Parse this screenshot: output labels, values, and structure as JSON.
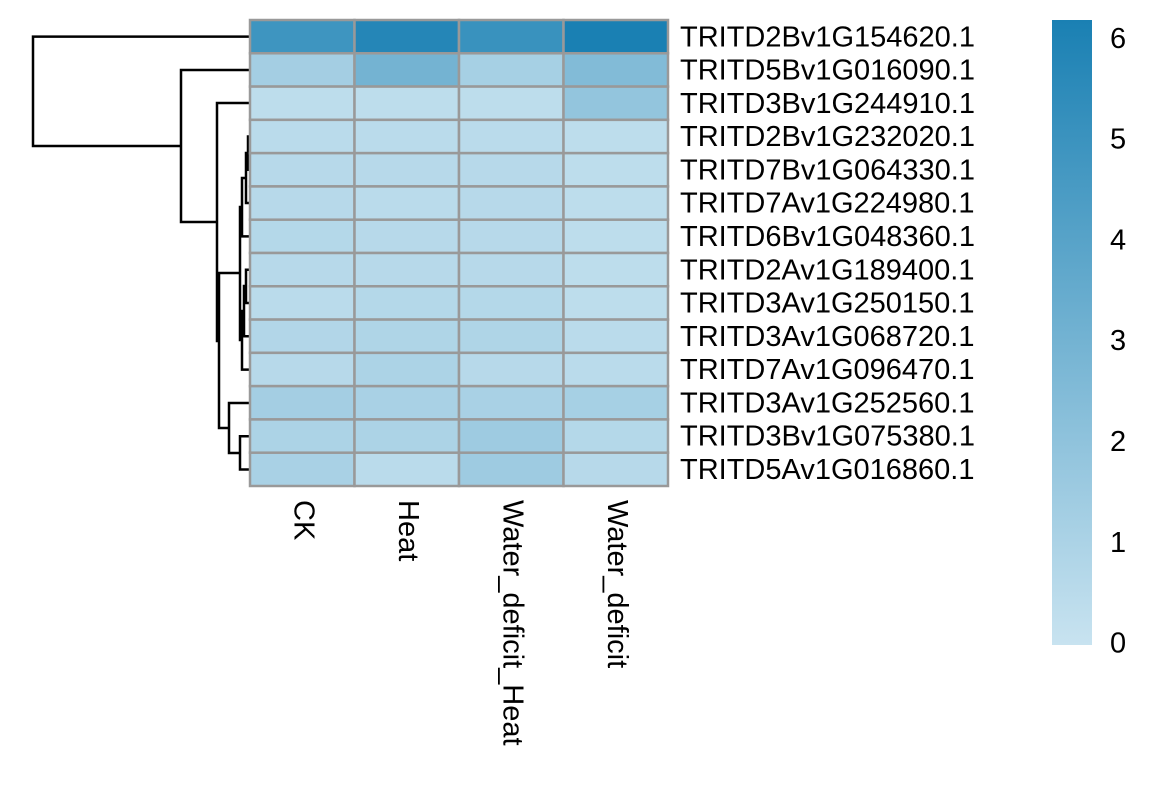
{
  "chart_data": {
    "type": "heatmap",
    "columns": [
      "CK",
      "Heat",
      "Water_deficit_Heat",
      "Water_deficit"
    ],
    "rows": [
      "TRITD2Bv1G154620.1",
      "TRITD5Bv1G016090.1",
      "TRITD3Bv1G244910.1",
      "TRITD2Bv1G232020.1",
      "TRITD7Bv1G064330.1",
      "TRITD7Av1G224980.1",
      "TRITD6Bv1G048360.1",
      "TRITD2Av1G189400.1",
      "TRITD3Av1G250150.1",
      "TRITD3Av1G068720.1",
      "TRITD7Av1G096470.1",
      "TRITD3Av1G252560.1",
      "TRITD3Bv1G075380.1",
      "TRITD5Av1G016860.1"
    ],
    "values": [
      [
        4.9,
        5.8,
        5.1,
        6.2
      ],
      [
        1.3,
        3.0,
        1.2,
        2.5
      ],
      [
        0.4,
        0.4,
        0.4,
        1.9
      ],
      [
        0.5,
        0.5,
        0.5,
        0.4
      ],
      [
        0.6,
        0.6,
        0.6,
        0.4
      ],
      [
        0.6,
        0.5,
        0.6,
        0.4
      ],
      [
        0.7,
        0.6,
        0.6,
        0.4
      ],
      [
        0.6,
        0.6,
        0.6,
        0.4
      ],
      [
        0.5,
        0.7,
        0.7,
        0.4
      ],
      [
        0.8,
        0.9,
        0.9,
        0.5
      ],
      [
        0.6,
        1.0,
        0.6,
        0.5
      ],
      [
        1.3,
        1.1,
        1.1,
        1.2
      ],
      [
        1.0,
        1.0,
        1.5,
        0.7
      ],
      [
        1.1,
        0.5,
        1.5,
        0.6
      ]
    ],
    "colors": [
      "#c8e3f0",
      "#1a80b3"
    ],
    "zlim": [
      0,
      6.2
    ],
    "zticks": [
      0,
      1,
      2,
      3,
      4,
      5,
      6
    ]
  }
}
